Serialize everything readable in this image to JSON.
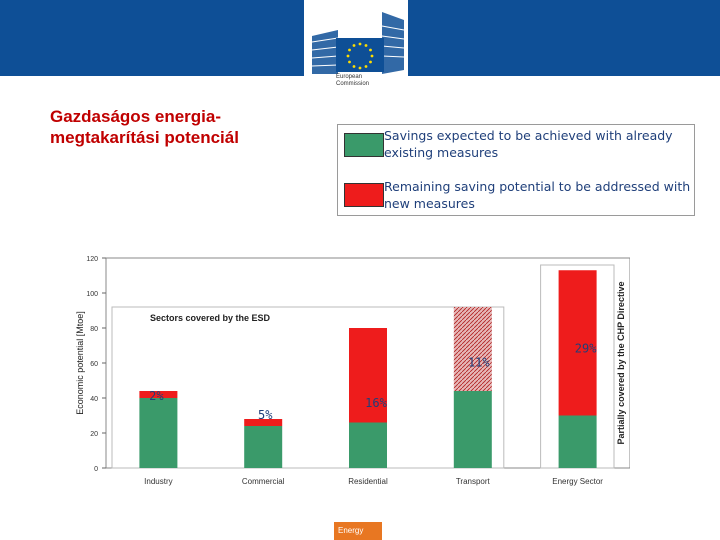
{
  "header": {
    "logo_line1": "European",
    "logo_line2": "Commission"
  },
  "slide": {
    "title": "Gazdaságos energia-megtakarítási potenciál"
  },
  "legend": [
    {
      "label": "Savings expected to be achieved with already existing measures",
      "color": "#3a9a6a"
    },
    {
      "label": "Remaining saving potential to be addressed with new measures",
      "color": "#ee1c1c"
    }
  ],
  "chart_data": {
    "type": "bar",
    "stacked": true,
    "categories": [
      "Industry",
      "Commercial",
      "Residential",
      "Transport",
      "Energy Sector"
    ],
    "series": [
      {
        "values": [
          40,
          24,
          26,
          44,
          30
        ],
        "color": "#3a9a6a"
      },
      {
        "values": [
          4,
          4,
          54,
          48,
          83
        ],
        "color": "#ee1c1c"
      }
    ],
    "percent_labels": [
      "2%",
      "5%",
      "16%",
      "11%",
      "29%"
    ],
    "hatched_category": "Transport",
    "ylabel": "Economic potential [Mtoe]",
    "ylim": [
      0,
      120
    ],
    "yticks": [
      0,
      20,
      40,
      60,
      80,
      100,
      120
    ],
    "esd_label": "Sectors covered by the ESD",
    "chp_label": "Partially covered by the CHP Directive",
    "grid": false
  },
  "footer": {
    "tag": "Energy"
  }
}
